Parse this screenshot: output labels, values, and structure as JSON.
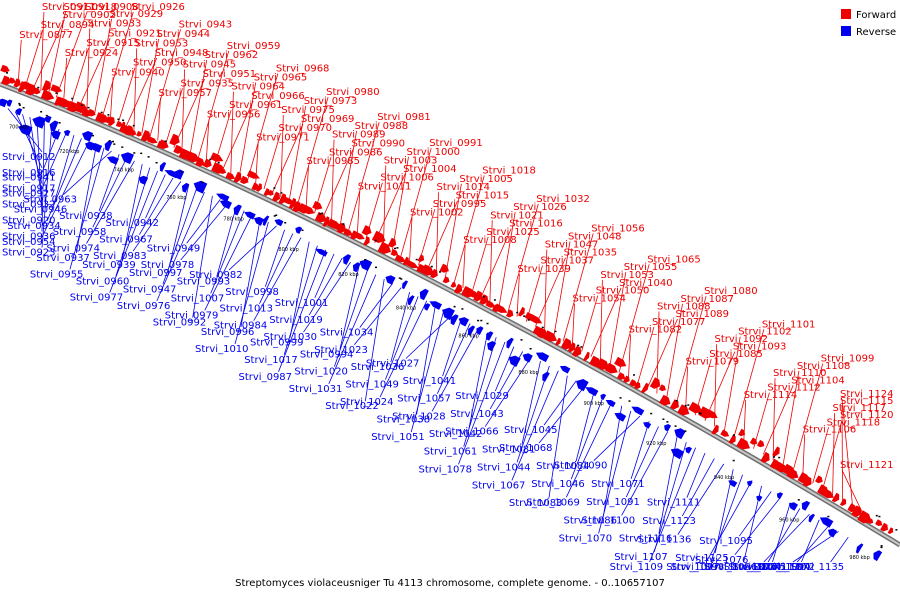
{
  "caption": "Streptomyces violaceusniger Tu 4113 chromosome, complete genome. - 0..10657107",
  "legend": [
    {
      "name": "Forward",
      "color": "#ee0000"
    },
    {
      "name": "Reverse",
      "color": "#0000ee"
    }
  ],
  "scale_ticks": [
    "700 kbp",
    "720 kbp",
    "740 kbp",
    "760 kbp",
    "780 kbp",
    "800 kbp",
    "820 kbp",
    "840 kbp",
    "860 kbp",
    "880 kbp",
    "900 kbp",
    "920 kbp",
    "940 kbp",
    "960 kbp",
    "980 kbp"
  ],
  "forward_labels": [
    "Strvi_0877",
    "Strvi_0894",
    "Strvi_0902",
    "Strvi_0911",
    "Strvi_0918",
    "Strvi_0908",
    "Strvi_0924",
    "Strvi_0915",
    "Strvi_0921",
    "Strvi_0933",
    "Strvi_0929",
    "Strvi_0926",
    "Strvi_0940",
    "Strvi_0950",
    "Strvi_0948",
    "Strvi_0953",
    "Strvi_0944",
    "Strvi_0943",
    "Strvi_0957",
    "Strvi_0935",
    "Strvi_0951",
    "Strvi_0945",
    "Strvi_0962",
    "Strvi_0959",
    "Strvi_0956",
    "Strvi_0961",
    "Strvi_0966",
    "Strvi_0964",
    "Strvi_0965",
    "Strvi_0968",
    "Strvi_0971",
    "Strvi_0970",
    "Strvi_0969",
    "Strvi_0975",
    "Strvi_0973",
    "Strvi_0980",
    "Strvi_0985",
    "Strvi_0986",
    "Strvi_0990",
    "Strvi_0989",
    "Strvi_0988",
    "Strvi_0981",
    "Strvi_1011",
    "Strvi_1006",
    "Strvi_1004",
    "Strvi_1003",
    "Strvi_1000",
    "Strvi_0991",
    "Strvi_1002",
    "Strvi_0995",
    "Strvi_1015",
    "Strvi_1014",
    "Strvi_1005",
    "Strvi_1018",
    "Strvi_1008",
    "Strvi_1025",
    "Strvi_1016",
    "Strvi_1021",
    "Strvi_1026",
    "Strvi_1032",
    "Strvi_1039",
    "Strvi_1037",
    "Strvi_1035",
    "Strvi_1047",
    "Strvi_1048",
    "Strvi_1056",
    "Strvi_1054",
    "Strvi_1050",
    "Strvi_1040",
    "Strvi_1053",
    "Strvi_1055",
    "Strvi_1065",
    "Strvi_1082",
    "Strvi_1077",
    "Strvi_1089",
    "Strvi_1088",
    "Strvi_1087",
    "Strvi_1080",
    "Strvi_1079",
    "Strvi_1085",
    "Strvi_1093",
    "Strvi_1092",
    "Strvi_1102",
    "Strvi_1101",
    "Strvi_1114",
    "Strvi_1112",
    "Strvi_1104",
    "Strvi_1110",
    "Strvi_1108",
    "Strvi_1099",
    "Strvi_1106",
    "Strvi_1118",
    "Strvi_1120",
    "Strvi_1117",
    "Strvi_1115",
    "Strvi_1124",
    "Strvi_1121"
  ],
  "reverse_labels": [
    "Strvi_0912",
    "Strvi_0916",
    "Strvi_0917",
    "Strvi_0932",
    "Strvi_0920",
    "Strvi_0936",
    "Strvi_0923",
    "Strvi_0941",
    "Strvi_0927",
    "Strvi_0946",
    "Strvi_0934",
    "Strvi_0954",
    "Strvi_0937",
    "Strvi_0955",
    "Strvi_0963",
    "Strvi_0938",
    "Strvi_0958",
    "Strvi_0974",
    "Strvi_0939",
    "Strvi_0960",
    "Strvi_0977",
    "Strvi_0942",
    "Strvi_0967",
    "Strvi_0983",
    "Strvi_0997",
    "Strvi_0947",
    "Strvi_0976",
    "Strvi_0992",
    "Strvi_0949",
    "Strvi_0978",
    "Strvi_0993",
    "Strvi_1007",
    "Strvi_0979",
    "Strvi_0996",
    "Strvi_1010",
    "Strvi_0982",
    "Strvi_0998",
    "Strvi_1013",
    "Strvi_0984",
    "Strvi_0999",
    "Strvi_1017",
    "Strvi_0987",
    "Strvi_1001",
    "Strvi_1019",
    "Strvi_1030",
    "Strvi_0994",
    "Strvi_1020",
    "Strvi_1031",
    "Strvi_1022",
    "Strvi_1034",
    "Strvi_1023",
    "Strvi_1036",
    "Strvi_1049",
    "Strvi_1024",
    "Strvi_1038",
    "Strvi_1051",
    "Strvi_1027",
    "Strvi_1041",
    "Strvi_1057",
    "Strvi_1028",
    "Strvi_1042",
    "Strvi_1061",
    "Strvi_1078",
    "Strvi_1029",
    "Strvi_1043",
    "Strvi_1066",
    "Strvi_1081",
    "Strvi_1044",
    "Strvi_1067",
    "Strvi_1083",
    "Strvi_1045",
    "Strvi_1068",
    "Strvi_1084",
    "Strvi_1046",
    "Strvi_1069",
    "Strvi_1086",
    "Strvi_1070",
    "Strvi_1090",
    "Strvi_1071",
    "Strvi_1091",
    "Strvi_1100",
    "Strvi_1116",
    "Strvi_1107",
    "Strvi_1109",
    "Strvi_1111",
    "Strvi_1123",
    "Strvi_1136",
    "Strvi_1125",
    "Strvi_1098",
    "Strvi_1097",
    "Strvi_1096",
    "Strvi_1095",
    "Strvi_1076",
    "Strvi_1075",
    "Strvi_1074",
    "Strvi_1073",
    "Strvi_1072",
    "Strvi_1094",
    "Strvi_1130",
    "Strvi_1135"
  ]
}
